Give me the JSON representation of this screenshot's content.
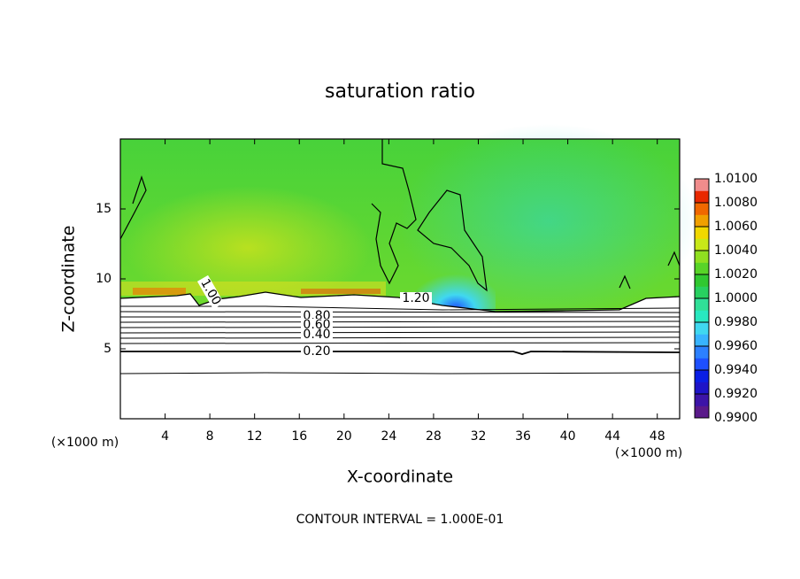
{
  "chart_data": {
    "type": "contour",
    "title": "saturation ratio",
    "x_label": "X-coordinate",
    "y_label": "Z-coordinate",
    "x_unit": "(×1000 m)",
    "y_unit": "(×1000 m)",
    "footer": "CONTOUR INTERVAL = 1.000E-01",
    "xlim": [
      0,
      50
    ],
    "xticks": [
      4,
      8,
      12,
      16,
      20,
      24,
      28,
      32,
      36,
      40,
      44,
      48
    ],
    "ylim": [
      0,
      20
    ],
    "yticks": [
      5,
      10,
      15
    ],
    "colorbar_lim": [
      0.99,
      1.01
    ],
    "colorbar_ticks": [
      {
        "value": 0.99,
        "label": "0.9900"
      },
      {
        "value": 0.992,
        "label": "0.9920"
      },
      {
        "value": 0.994,
        "label": "0.9940"
      },
      {
        "value": 0.996,
        "label": "0.9960"
      },
      {
        "value": 0.998,
        "label": "0.9980"
      },
      {
        "value": 1.0,
        "label": "1.0000"
      },
      {
        "value": 1.002,
        "label": "1.0020"
      },
      {
        "value": 1.004,
        "label": "1.0040"
      },
      {
        "value": 1.006,
        "label": "1.0060"
      },
      {
        "value": 1.008,
        "label": "1.0080"
      },
      {
        "value": 1.01,
        "label": "1.0100"
      }
    ],
    "colorbar_colors": [
      "#5a1a8a",
      "#3c14a8",
      "#1e14c8",
      "#0a1ee6",
      "#1e50ff",
      "#2c80ff",
      "#38b4ff",
      "#40d8f0",
      "#28e8c0",
      "#30e098",
      "#28d060",
      "#30c830",
      "#58d428",
      "#90e020",
      "#c8e818",
      "#f0d800",
      "#f0a000",
      "#f06800",
      "#e82800",
      "#f08c8c"
    ],
    "contour_labels": [
      {
        "value": 1.2,
        "label": "1.20"
      },
      {
        "value": 1.0,
        "label": "1.00"
      },
      {
        "value": 0.8,
        "label": "0.80"
      },
      {
        "value": 0.6,
        "label": "0.60"
      },
      {
        "value": 0.4,
        "label": "0.40"
      },
      {
        "value": 0.2,
        "label": "0.20"
      }
    ]
  }
}
